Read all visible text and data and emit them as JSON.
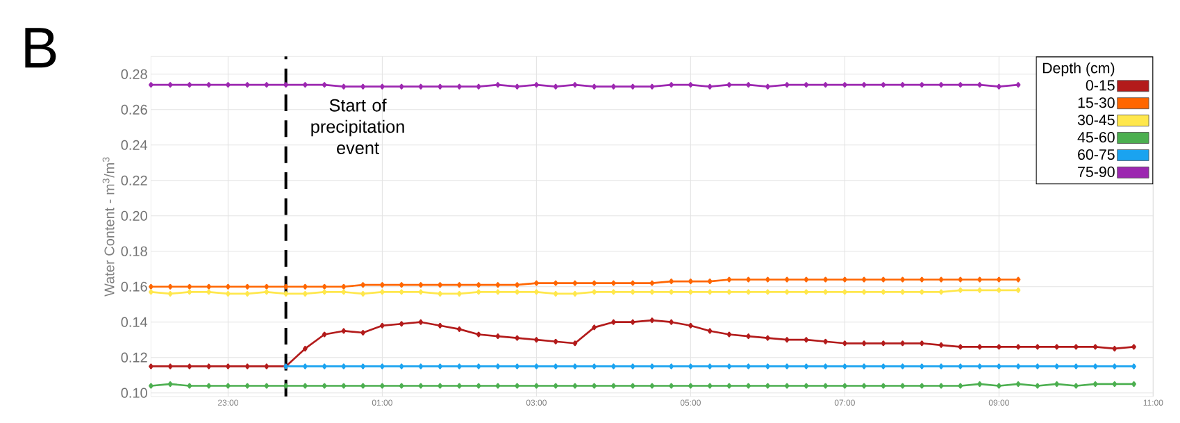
{
  "chart_data": {
    "type": "line",
    "title": "B",
    "ylabel": "Water Content - m$^{3}$/m$^{3}$",
    "legend_title": "Depth (cm)",
    "x": [
      "2000-01-01T22:00",
      "2000-01-01T22:15",
      "2000-01-01T22:30",
      "2000-01-01T22:45",
      "2000-01-01T23:00",
      "2000-01-01T23:15",
      "2000-01-01T23:30",
      "2000-01-01T23:45",
      "2000-01-02T00:00",
      "2000-01-02T00:15",
      "2000-01-02T00:30",
      "2000-01-02T00:45",
      "2000-01-02T01:00",
      "2000-01-02T01:15",
      "2000-01-02T01:30",
      "2000-01-02T01:45",
      "2000-01-02T02:00",
      "2000-01-02T02:15",
      "2000-01-02T02:30",
      "2000-01-02T02:45",
      "2000-01-02T03:00",
      "2000-01-02T03:15",
      "2000-01-02T03:30",
      "2000-01-02T03:45",
      "2000-01-02T04:00",
      "2000-01-02T04:15",
      "2000-01-02T04:30",
      "2000-01-02T04:45",
      "2000-01-02T05:00",
      "2000-01-02T05:15",
      "2000-01-02T05:30",
      "2000-01-02T05:45",
      "2000-01-02T06:00",
      "2000-01-02T06:15",
      "2000-01-02T06:30",
      "2000-01-02T06:45",
      "2000-01-02T07:00",
      "2000-01-02T07:15",
      "2000-01-02T07:30",
      "2000-01-02T07:45",
      "2000-01-02T08:00",
      "2000-01-02T08:15",
      "2000-01-02T08:30",
      "2000-01-02T08:45",
      "2000-01-02T09:00",
      "2000-01-02T09:15",
      "2000-01-02T09:30",
      "2000-01-02T09:45",
      "2000-01-02T10:00",
      "2000-01-02T10:15",
      "2000-01-02T10:30",
      "2000-01-02T10:45"
    ],
    "series": [
      {
        "name": "0-15",
        "color": "#b31b1b",
        "values": [
          0.115,
          0.115,
          0.115,
          0.115,
          0.115,
          0.115,
          0.115,
          0.115,
          0.125,
          0.133,
          0.135,
          0.134,
          0.138,
          0.139,
          0.14,
          0.138,
          0.136,
          0.133,
          0.132,
          0.131,
          0.13,
          0.129,
          0.128,
          0.137,
          0.14,
          0.14,
          0.141,
          0.14,
          0.138,
          0.135,
          0.133,
          0.132,
          0.131,
          0.13,
          0.13,
          0.129,
          0.128,
          0.128,
          0.128,
          0.128,
          0.128,
          0.127,
          0.126,
          0.126,
          0.126,
          0.126,
          0.126,
          0.126,
          0.126,
          0.126,
          0.125,
          0.126
        ]
      },
      {
        "name": "15-30",
        "color": "#ff6600",
        "values": [
          0.16,
          0.16,
          0.16,
          0.16,
          0.16,
          0.16,
          0.16,
          0.16,
          0.16,
          0.16,
          0.16,
          0.161,
          0.161,
          0.161,
          0.161,
          0.161,
          0.161,
          0.161,
          0.161,
          0.161,
          0.162,
          0.162,
          0.162,
          0.162,
          0.162,
          0.162,
          0.162,
          0.163,
          0.163,
          0.163,
          0.164,
          0.164,
          0.164,
          0.164,
          0.164,
          0.164,
          0.164,
          0.164,
          0.164,
          0.164,
          0.164,
          0.164,
          0.164,
          0.164,
          0.164,
          0.164,
          null,
          null,
          null,
          null,
          null,
          null
        ]
      },
      {
        "name": "30-45",
        "color": "#ffe74c",
        "values": [
          0.157,
          0.156,
          0.157,
          0.157,
          0.156,
          0.156,
          0.157,
          0.156,
          0.156,
          0.157,
          0.157,
          0.156,
          0.157,
          0.157,
          0.157,
          0.156,
          0.156,
          0.157,
          0.157,
          0.157,
          0.157,
          0.156,
          0.156,
          0.157,
          0.157,
          0.157,
          0.157,
          0.157,
          0.157,
          0.157,
          0.157,
          0.157,
          0.157,
          0.157,
          0.157,
          0.157,
          0.157,
          0.157,
          0.157,
          0.157,
          0.157,
          0.157,
          0.158,
          0.158,
          0.158,
          0.158,
          null,
          null,
          null,
          null,
          null,
          null
        ]
      },
      {
        "name": "45-60",
        "color": "#4caf50",
        "values": [
          0.104,
          0.105,
          0.104,
          0.104,
          0.104,
          0.104,
          0.104,
          0.104,
          0.104,
          0.104,
          0.104,
          0.104,
          0.104,
          0.104,
          0.104,
          0.104,
          0.104,
          0.104,
          0.104,
          0.104,
          0.104,
          0.104,
          0.104,
          0.104,
          0.104,
          0.104,
          0.104,
          0.104,
          0.104,
          0.104,
          0.104,
          0.104,
          0.104,
          0.104,
          0.104,
          0.104,
          0.104,
          0.104,
          0.104,
          0.104,
          0.104,
          0.104,
          0.104,
          0.105,
          0.104,
          0.105,
          0.104,
          0.105,
          0.104,
          0.105,
          0.105,
          0.105
        ]
      },
      {
        "name": "60-75",
        "color": "#1aa3f0",
        "values": [
          null,
          null,
          null,
          null,
          null,
          null,
          null,
          0.115,
          0.115,
          0.115,
          0.115,
          0.115,
          0.115,
          0.115,
          0.115,
          0.115,
          0.115,
          0.115,
          0.115,
          0.115,
          0.115,
          0.115,
          0.115,
          0.115,
          0.115,
          0.115,
          0.115,
          0.115,
          0.115,
          0.115,
          0.115,
          0.115,
          0.115,
          0.115,
          0.115,
          0.115,
          0.115,
          0.115,
          0.115,
          0.115,
          0.115,
          0.115,
          0.115,
          0.115,
          0.115,
          0.115,
          0.115,
          0.115,
          0.115,
          0.115,
          0.115,
          0.115
        ]
      },
      {
        "name": "75-90",
        "color": "#9c27b0",
        "values": [
          0.274,
          0.274,
          0.274,
          0.274,
          0.274,
          0.274,
          0.274,
          0.274,
          0.274,
          0.274,
          0.273,
          0.273,
          0.273,
          0.273,
          0.273,
          0.273,
          0.273,
          0.273,
          0.274,
          0.273,
          0.274,
          0.273,
          0.274,
          0.273,
          0.273,
          0.273,
          0.273,
          0.274,
          0.274,
          0.273,
          0.274,
          0.274,
          0.273,
          0.274,
          0.274,
          0.274,
          0.274,
          0.274,
          0.274,
          0.274,
          0.274,
          0.274,
          0.274,
          0.274,
          0.273,
          0.274,
          null,
          null,
          null,
          null,
          null,
          null
        ]
      }
    ],
    "xlim": [
      "2000-01-01T22:00",
      "2000-01-02T11:00"
    ],
    "xticks": [
      {
        "value": "2000-01-01T23:00",
        "label": "23:00"
      },
      {
        "value": "2000-01-02T01:00",
        "label": "01:00"
      },
      {
        "value": "2000-01-02T03:00",
        "label": "03:00"
      },
      {
        "value": "2000-01-02T05:00",
        "label": "05:00"
      },
      {
        "value": "2000-01-02T07:00",
        "label": "07:00"
      },
      {
        "value": "2000-01-02T09:00",
        "label": "09:00"
      },
      {
        "value": "2000-01-02T11:00",
        "label": "11:00"
      }
    ],
    "ylim": [
      0.098,
      0.29
    ],
    "yticks": [
      {
        "value": 0.1,
        "label": "0.10"
      },
      0.12,
      0.14,
      0.16,
      0.18,
      {
        "value": 0.2,
        "label": "0.20"
      },
      0.22,
      0.24,
      0.26,
      0.28
    ],
    "ref_lines": [
      {
        "axis": "x",
        "value": "2000-01-01T23:45",
        "label": "Start of precipitation event",
        "color": "#000000",
        "line_style": "dashed"
      }
    ],
    "grid": true,
    "legend": "top right",
    "marker": "diamond",
    "line_style": "solid"
  }
}
